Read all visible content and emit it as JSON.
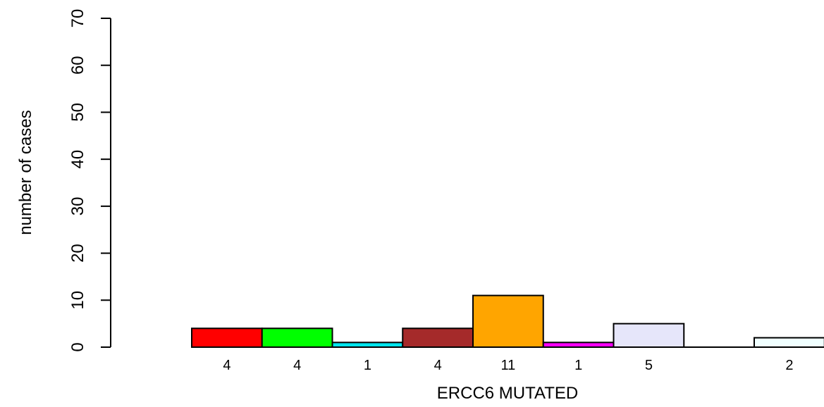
{
  "chart_data": {
    "type": "bar",
    "title": "",
    "xlabel": "ERCC6 MUTATED",
    "ylabel": "number of cases",
    "ylim": [
      0,
      70
    ],
    "yticks": [
      0,
      10,
      20,
      30,
      40,
      50,
      60,
      70
    ],
    "grid": false,
    "legend": "none",
    "bars": [
      {
        "value": 4,
        "label": "4",
        "color": "#ff0000"
      },
      {
        "value": 4,
        "label": "4",
        "color": "#00ff00"
      },
      {
        "value": 1,
        "label": "1",
        "color": "#00e5ee"
      },
      {
        "value": 4,
        "label": "4",
        "color": "#a52a2a"
      },
      {
        "value": 11,
        "label": "11",
        "color": "#ffa500"
      },
      {
        "value": 1,
        "label": "1",
        "color": "#ff00ff"
      },
      {
        "value": 5,
        "label": "5",
        "color": "#e6e6fa"
      },
      {
        "value": 0,
        "label": "",
        "color": "#ffffff"
      },
      {
        "value": 2,
        "label": "2",
        "color": "#f0ffff"
      }
    ]
  }
}
